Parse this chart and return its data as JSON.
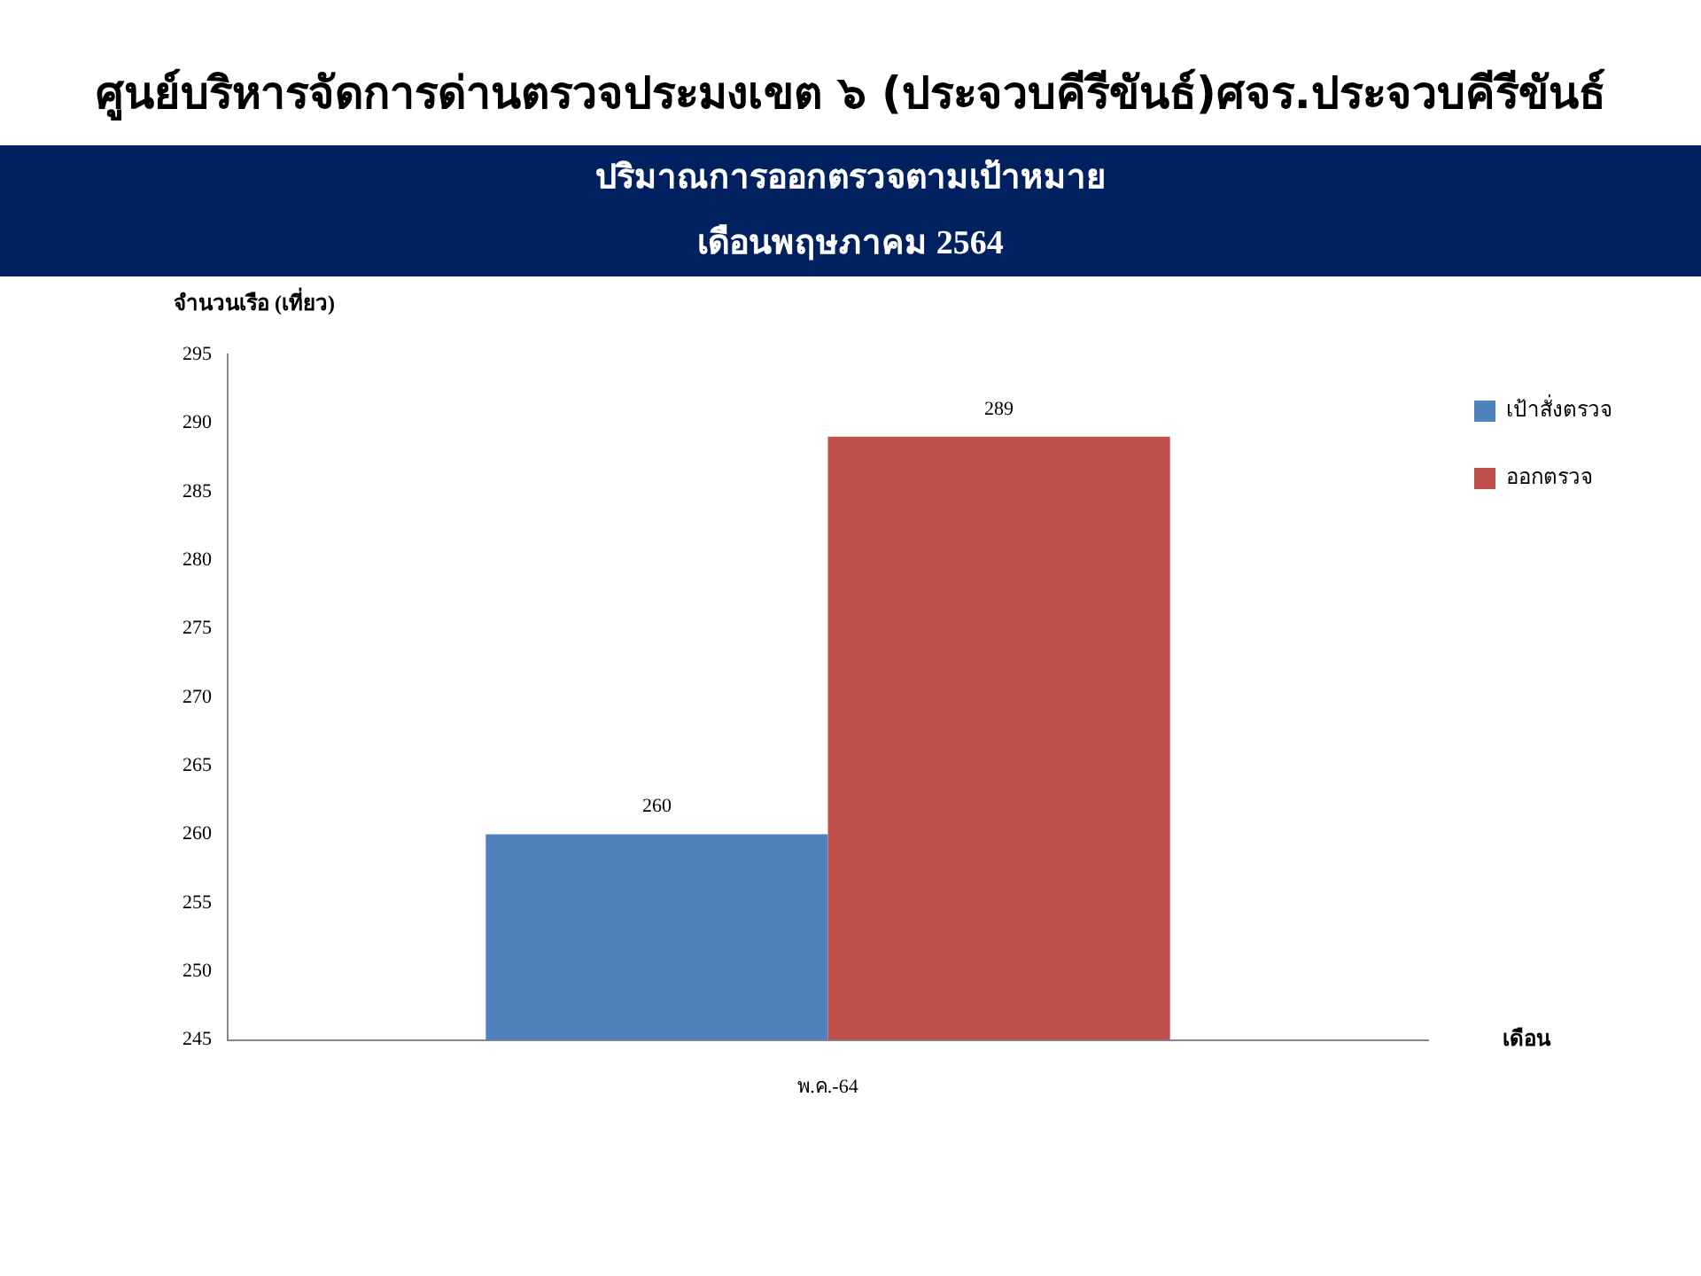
{
  "chart_data": {
    "type": "bar",
    "title": "ศูนย์บริหารจัดการด่านตรวจประมงเขต  ๖ (ประจวบคีรีขันธ์)ศจร.ประจวบคีรีขันธ์",
    "subtitle": "ปริมาณการออกตรวจตามเป้าหมาย\nเดือนพฤษภาคม 2564",
    "xlabel": "เดือน",
    "ylabel": "จำนวนเรือ (เที่ยว)",
    "categories": [
      "พ.ค.-64"
    ],
    "series": [
      {
        "name": "เป้าสั่งตรวจ",
        "color": "#4f81bd",
        "values": [
          260
        ]
      },
      {
        "name": "ออกตรวจ",
        "color": "#c0504d",
        "values": [
          289
        ]
      }
    ],
    "ylim": [
      245,
      295
    ],
    "yticks": [
      245,
      250,
      255,
      260,
      265,
      270,
      275,
      280,
      285,
      290,
      295
    ],
    "grid": false,
    "legend": "right",
    "data_labels": true
  }
}
